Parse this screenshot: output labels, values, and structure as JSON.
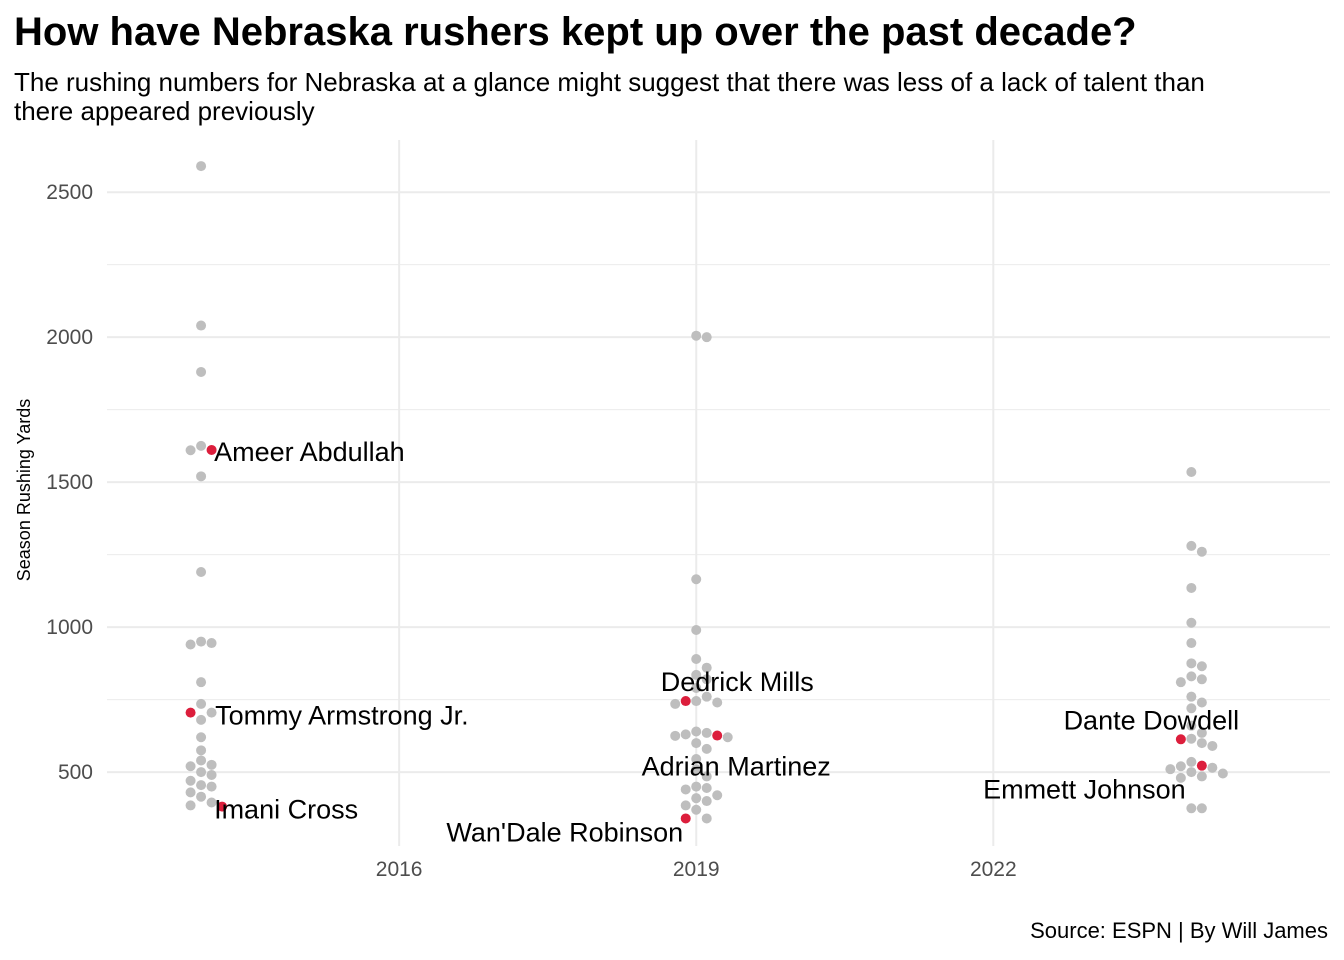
{
  "title": "How have Nebraska rushers kept up over the past decade?",
  "subtitle": "The rushing numbers for Nebraska at a glance might suggest that there was less of a lack of talent than there appeared previously",
  "caption": "Source: ESPN | By Will James",
  "colors": {
    "highlight": "#dc1e3c",
    "point": "#bebebe",
    "grid": "#ebebeb",
    "tick": "#4d4d4d"
  },
  "chart_data": {
    "type": "scatter",
    "style": "beeswarm",
    "xlabel": "",
    "ylabel": "Season Rushing Yards",
    "xlim": [
      2013.05,
      2025.4
    ],
    "ylim": [
      245,
      2680
    ],
    "x_ticks": [
      2016,
      2019,
      2022
    ],
    "y_ticks": [
      500,
      1000,
      1500,
      2000,
      2500
    ],
    "grid": true,
    "groups": [
      {
        "x": 2014,
        "yards": [
          2590,
          2040,
          1880,
          1625,
          1610,
          1520,
          1190,
          950,
          945,
          940,
          810,
          735,
          705,
          680,
          620,
          575,
          540,
          525,
          520,
          500,
          490,
          470,
          455,
          450,
          430,
          415,
          395,
          385
        ]
      },
      {
        "x": 2019,
        "yards": [
          2005,
          2000,
          1165,
          990,
          890,
          860,
          835,
          820,
          790,
          760,
          745,
          740,
          735,
          640,
          635,
          630,
          625,
          620,
          600,
          580,
          545,
          510,
          485,
          450,
          445,
          440,
          420,
          410,
          400,
          385,
          370,
          340
        ]
      },
      {
        "x": 2024,
        "yards": [
          1535,
          1280,
          1260,
          1135,
          1015,
          945,
          875,
          865,
          830,
          820,
          810,
          760,
          740,
          720,
          660,
          635,
          615,
          600,
          590,
          535,
          520,
          515,
          510,
          500,
          495,
          485,
          480,
          375,
          375
        ]
      }
    ],
    "highlighted": [
      {
        "name": "Ameer Abdullah",
        "x": 2014,
        "yards": 1611
      },
      {
        "name": "Tommy Armstrong Jr.",
        "x": 2014,
        "yards": 705
      },
      {
        "name": "Imani Cross",
        "x": 2014,
        "yards": 381
      },
      {
        "name": "Dedrick Mills",
        "x": 2019,
        "yards": 745
      },
      {
        "name": "Adrian Martinez",
        "x": 2019,
        "yards": 626
      },
      {
        "name": "Wan'Dale Robinson",
        "x": 2019,
        "yards": 340
      },
      {
        "name": "Dante Dowdell",
        "x": 2024,
        "yards": 613
      },
      {
        "name": "Emmett Johnson",
        "x": 2024,
        "yards": 522
      }
    ]
  }
}
